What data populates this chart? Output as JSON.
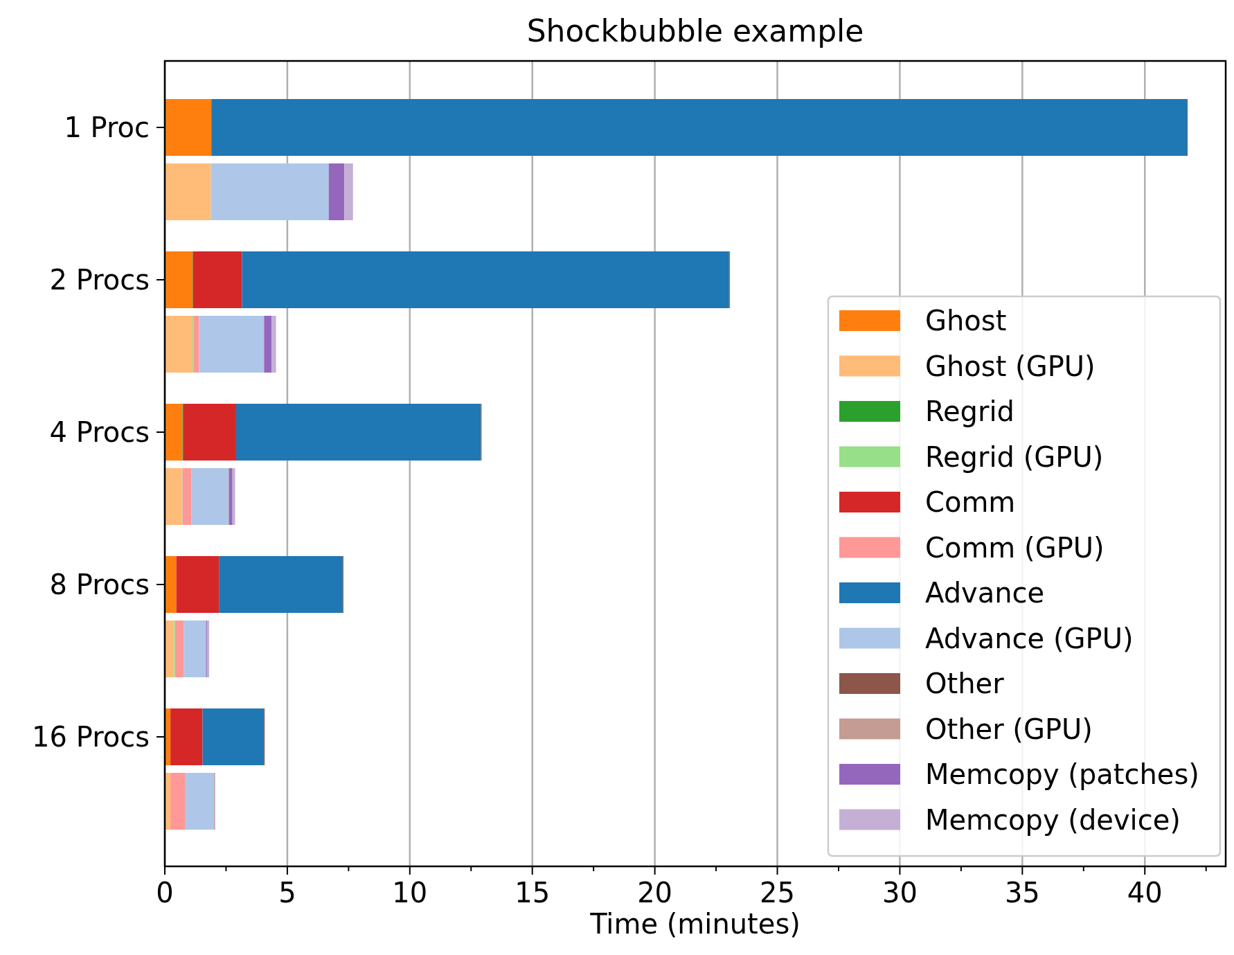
{
  "chart_data": {
    "type": "bar",
    "orientation": "horizontal",
    "stacked": true,
    "title": "Shockbubble example",
    "xlabel": "Time (minutes)",
    "categories": [
      "1 Proc",
      null,
      "2 Procs",
      null,
      "4 Procs",
      null,
      "8 Procs",
      null,
      "16 Procs",
      null
    ],
    "series": [
      {
        "name": "Ghost",
        "color": "#ff7f0e",
        "values": [
          1.9,
          null,
          1.13,
          null,
          0.72,
          null,
          0.47,
          null,
          0.23,
          null
        ]
      },
      {
        "name": "Ghost (GPU)",
        "color": "#ffbb78",
        "values": [
          null,
          1.88,
          null,
          1.13,
          null,
          0.69,
          null,
          0.38,
          null,
          0.23
        ]
      },
      {
        "name": "Regrid",
        "color": "#2ca02c",
        "values": [
          null,
          null,
          0.02,
          null,
          0.02,
          null,
          null,
          null,
          null,
          null
        ]
      },
      {
        "name": "Regrid (GPU)",
        "color": "#98df8a",
        "values": [
          null,
          null,
          null,
          0.04,
          null,
          0.03,
          null,
          0.04,
          null,
          null
        ]
      },
      {
        "name": "Comm",
        "color": "#d62728",
        "values": [
          null,
          null,
          2.0,
          null,
          2.17,
          null,
          1.74,
          null,
          1.31,
          null
        ]
      },
      {
        "name": "Comm (GPU)",
        "color": "#ff9896",
        "values": [
          null,
          null,
          null,
          0.23,
          null,
          0.37,
          null,
          0.36,
          null,
          0.59
        ]
      },
      {
        "name": "Advance",
        "color": "#1f77b4",
        "values": [
          39.82,
          null,
          19.88,
          null,
          9.99,
          null,
          5.05,
          null,
          2.51,
          null
        ]
      },
      {
        "name": "Advance (GPU)",
        "color": "#aec7e8",
        "values": [
          null,
          4.81,
          null,
          2.65,
          null,
          1.51,
          null,
          0.9,
          null,
          1.19
        ]
      },
      {
        "name": "Other",
        "color": "#8c564b",
        "values": [
          0.03,
          null,
          0.03,
          null,
          0.03,
          null,
          0.03,
          null,
          0.03,
          null
        ]
      },
      {
        "name": "Other (GPU)",
        "color": "#c49c94",
        "values": [
          null,
          null,
          null,
          null,
          null,
          0.02,
          null,
          null,
          null,
          0.03
        ]
      },
      {
        "name": "Memcopy (patches)",
        "color": "#9467bd",
        "values": [
          null,
          0.64,
          null,
          0.31,
          null,
          0.14,
          null,
          0.04,
          null,
          0.01
        ]
      },
      {
        "name": "Memcopy (device)",
        "color": "#c5b0d5",
        "values": [
          null,
          0.35,
          null,
          0.18,
          null,
          0.11,
          null,
          0.09,
          null,
          0.01
        ]
      }
    ],
    "xlim": [
      0,
      43.3
    ],
    "xticks": [
      0,
      {
        "value": 2.5,
        "label": null
      },
      5,
      {
        "value": 7.5,
        "label": null
      },
      10,
      {
        "value": 12.5,
        "label": null
      },
      15,
      {
        "value": 17.5,
        "label": null
      },
      20,
      {
        "value": 22.5,
        "label": null
      },
      25,
      {
        "value": 27.5,
        "label": null
      },
      30,
      {
        "value": 32.5,
        "label": null
      },
      35,
      {
        "value": 37.5,
        "label": null
      },
      40,
      {
        "value": 42.5,
        "label": null
      }
    ],
    "grid": "x",
    "legend": "right"
  }
}
